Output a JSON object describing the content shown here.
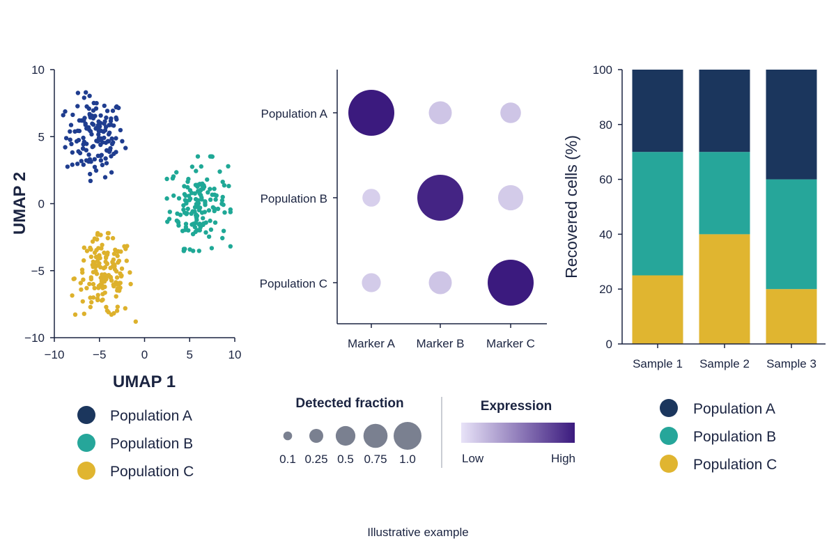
{
  "colors": {
    "population_a": "#1b365d",
    "population_b": "#26a69a",
    "population_c": "#e0b530",
    "umap_a": "#1f3d8f",
    "umap_b": "#1fa896",
    "umap_c": "#ddb12c",
    "expression_low": "#e8e3f8",
    "expression_high": "#3b1a7e",
    "size_legend": "#7a8090",
    "axis": "#1a2340"
  },
  "chart_data": [
    {
      "type": "scatter",
      "xlabel": "UMAP 1",
      "ylabel": "UMAP 2",
      "xlim": [
        -10,
        10
      ],
      "ylim": [
        -10,
        10
      ],
      "x_ticks": [
        "−10",
        "−5",
        "0",
        "5",
        "10"
      ],
      "y_ticks": [
        "10",
        "5",
        "0",
        "−5",
        "−10"
      ],
      "grid": false,
      "series": [
        {
          "name": "Population A",
          "center": [
            -5.5,
            5.0
          ],
          "spread": [
            1.6,
            1.5
          ],
          "count": 140
        },
        {
          "name": "Population B",
          "center": [
            6.0,
            0.0
          ],
          "spread": [
            1.6,
            1.6
          ],
          "count": 150
        },
        {
          "name": "Population C",
          "center": [
            -4.5,
            -5.5
          ],
          "spread": [
            1.6,
            1.5
          ],
          "count": 150
        }
      ],
      "legend": [
        "Population A",
        "Population B",
        "Population C"
      ],
      "legend_placement": "bottom"
    },
    {
      "type": "scatter",
      "subtype": "dot-plot",
      "x_categories": [
        "Marker A",
        "Marker B",
        "Marker C"
      ],
      "y_categories": [
        "Population A",
        "Population B",
        "Population C"
      ],
      "points": [
        {
          "population": "Population A",
          "marker": "Marker A",
          "fraction": 1.0,
          "expression": 1.0
        },
        {
          "population": "Population A",
          "marker": "Marker B",
          "fraction": 0.25,
          "expression": 0.15
        },
        {
          "population": "Population A",
          "marker": "Marker C",
          "fraction": 0.2,
          "expression": 0.15
        },
        {
          "population": "Population B",
          "marker": "Marker A",
          "fraction": 0.15,
          "expression": 0.1
        },
        {
          "population": "Population B",
          "marker": "Marker B",
          "fraction": 1.0,
          "expression": 0.95
        },
        {
          "population": "Population B",
          "marker": "Marker C",
          "fraction": 0.3,
          "expression": 0.12
        },
        {
          "population": "Population C",
          "marker": "Marker A",
          "fraction": 0.17,
          "expression": 0.12
        },
        {
          "population": "Population C",
          "marker": "Marker B",
          "fraction": 0.25,
          "expression": 0.15
        },
        {
          "population": "Population C",
          "marker": "Marker C",
          "fraction": 1.0,
          "expression": 1.0
        }
      ],
      "size_legend": {
        "title": "Detected fraction",
        "values": [
          0.1,
          0.25,
          0.5,
          0.75,
          1.0
        ],
        "labels": [
          "0.1",
          "0.25",
          "0.5",
          "0.75",
          "1.0"
        ]
      },
      "color_legend": {
        "title": "Expression",
        "low_label": "Low",
        "high_label": "High"
      }
    },
    {
      "type": "bar",
      "stacked": true,
      "categories": [
        "Sample 1",
        "Sample 2",
        "Sample 3"
      ],
      "ylabel": "Recovered cells (%)",
      "ylim": [
        0,
        100
      ],
      "y_ticks": [
        "0",
        "20",
        "40",
        "60",
        "80",
        "100"
      ],
      "series": [
        {
          "name": "Population C",
          "values": [
            25,
            40,
            20
          ]
        },
        {
          "name": "Population B",
          "values": [
            45,
            30,
            40
          ]
        },
        {
          "name": "Population A",
          "values": [
            30,
            30,
            40
          ]
        }
      ],
      "legend": [
        "Population A",
        "Population B",
        "Population C"
      ],
      "legend_placement": "bottom"
    }
  ],
  "footer": {
    "caption": "Illustrative example"
  }
}
